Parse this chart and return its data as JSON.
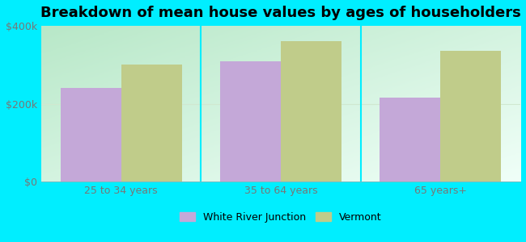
{
  "title": "Breakdown of mean house values by ages of householders",
  "categories": [
    "25 to 34 years",
    "35 to 64 years",
    "65 years+"
  ],
  "series_names": [
    "White River Junction",
    "Vermont"
  ],
  "values": {
    "White River Junction": [
      240000,
      310000,
      215000
    ],
    "Vermont": [
      300000,
      360000,
      335000
    ]
  },
  "bar_colors": {
    "White River Junction": "#c4a8d8",
    "Vermont": "#c0cc8a"
  },
  "ylim": [
    0,
    400000
  ],
  "yticks": [
    0,
    200000,
    400000
  ],
  "ytick_labels": [
    "$0",
    "$200k",
    "$400k"
  ],
  "fig_bg_color": "#00eeff",
  "plot_bg_topleft": "#b8e8c8",
  "plot_bg_bottomright": "#f0fff8",
  "bar_width": 0.38,
  "title_fontsize": 13,
  "tick_fontsize": 9,
  "tick_color": "#777777",
  "legend_fontsize": 9,
  "separator_color": "#00eeff",
  "grid_color": "#d0e8d0"
}
